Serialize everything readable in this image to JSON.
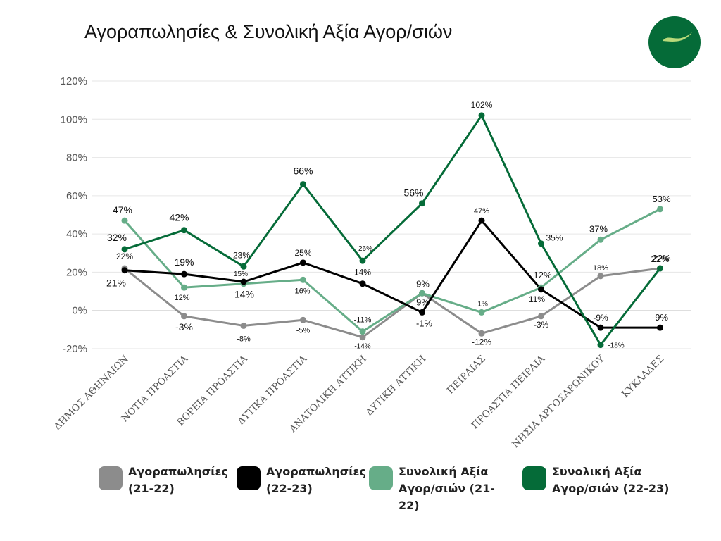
{
  "chart_data": {
    "type": "line",
    "title": "Αγοραπωλησίες & Συνολική Αξία Αγορ/σιών",
    "xlabel": "",
    "ylabel": "",
    "ylim": [
      -20,
      120
    ],
    "y_ticks": [
      "-20%",
      "0%",
      "20%",
      "40%",
      "60%",
      "80%",
      "100%",
      "120%"
    ],
    "grid": true,
    "legend_position": "bottom",
    "categories": [
      "ΔΗΜΟΣ ΑΘΗΝΑΙΩΝ",
      "ΝΟΤΙΑ ΠΡΟΑΣΤΙΑ",
      "ΒΟΡΕΙΑ ΠΡΟΑΣΤΙΑ",
      "ΔΥΤΙΚΑ ΠΡΟΑΣΤΙΑ",
      "ΑΝΑΤΟΛΙΚΗ ΑΤΤΙΚΗ",
      "ΔΥΤΙΚΗ ΑΤΤΙΚΗ",
      "ΠΕΙΡΑΙΑΣ",
      "ΠΡΟΑΣΤΙΑ ΠΕΙΡΑΙΑ",
      "ΝΗΣΙΑ ΑΡΓΟΣΑΡΩΝΙΚΟΥ",
      "ΚΥΚΛΑΔΕΣ"
    ],
    "series": [
      {
        "name": "Αγοραπωλησίες (21-22)",
        "color": "#8c8c8c",
        "values": [
          22,
          -3,
          -8,
          -5,
          -14,
          9,
          -12,
          -3,
          18,
          22
        ],
        "labels": [
          "22%",
          "-3%",
          "-8%",
          "-5%",
          "-14%",
          "9%",
          "-12%",
          "-3%",
          "18%",
          "22%"
        ]
      },
      {
        "name": "Αγοραπωλησίες (22-23)",
        "color": "#000000",
        "values": [
          21,
          19,
          15,
          25,
          14,
          -1,
          47,
          11,
          -9,
          -9
        ],
        "labels": [
          "21%",
          "19%",
          "15%",
          "25%",
          "14%",
          "-1%",
          "47%",
          "11%",
          "-9%",
          "-9%"
        ]
      },
      {
        "name": "Συνολική Αξία Αγορ/σιών (21-22)",
        "color": "#66ad88",
        "values": [
          47,
          12,
          14,
          16,
          -11,
          9,
          -1,
          12,
          37,
          53
        ],
        "labels": [
          "47%",
          "12%",
          "14%",
          "16%",
          "-11%",
          "9%",
          "-1%",
          "12%",
          "37%",
          "53%"
        ]
      },
      {
        "name": "Συνολική Αξία Αγορ/σιών (22-23)",
        "color": "#056b38",
        "values": [
          32,
          42,
          23,
          66,
          26,
          56,
          102,
          35,
          -18,
          22
        ],
        "labels": [
          "32%",
          "42%",
          "23%",
          "66%",
          "26%",
          "56%",
          "102%",
          "35%",
          "-18%",
          "22%"
        ]
      }
    ]
  },
  "legend": {
    "items": [
      {
        "line1": "Αγοραπωλησίες",
        "line2": "(21-22)",
        "color": "#8c8c8c"
      },
      {
        "line1": "Αγοραπωλησίες",
        "line2": "(22-23)",
        "color": "#000000"
      },
      {
        "line1": "Συνολική Αξία",
        "line2": "Αγορ/σιών (21-22)",
        "color": "#66ad88"
      },
      {
        "line1": "Συνολική Αξία",
        "line2": "Αγορ/σιών (22-23)",
        "color": "#056b38"
      }
    ]
  },
  "logo": {
    "color": "#056b38",
    "swash_color": "#b9d97a"
  }
}
